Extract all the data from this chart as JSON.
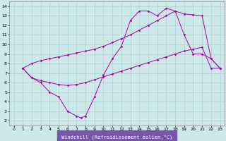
{
  "bg_color": "#cce8e8",
  "grid_color": "#b0d0d0",
  "line_color": "#aa00aa",
  "xlim": [
    -0.5,
    23.5
  ],
  "ylim": [
    1.5,
    14.5
  ],
  "xticks": [
    0,
    1,
    2,
    3,
    4,
    5,
    6,
    7,
    8,
    9,
    10,
    11,
    12,
    13,
    14,
    15,
    16,
    17,
    18,
    19,
    20,
    21,
    22,
    23
  ],
  "yticks": [
    2,
    3,
    4,
    5,
    6,
    7,
    8,
    9,
    10,
    11,
    12,
    13,
    14
  ],
  "xlabel": "Windchill (Refroidissement éolien,°C)",
  "xlabel_bg": "#7755aa",
  "line1_x": [
    1,
    2,
    3,
    4,
    5,
    6,
    7,
    7.5,
    8,
    9,
    10,
    11,
    12,
    13,
    14,
    15,
    16,
    17,
    18,
    19,
    20,
    21,
    22,
    23
  ],
  "line1_y": [
    7.5,
    6.5,
    6.0,
    5.0,
    4.5,
    3.0,
    2.5,
    2.3,
    2.5,
    4.5,
    6.8,
    8.5,
    9.8,
    12.5,
    13.5,
    13.5,
    13.0,
    13.8,
    13.5,
    11.0,
    9.0,
    9.0,
    8.5,
    7.5
  ],
  "line2_x": [
    1,
    2,
    3,
    4,
    5,
    6,
    7,
    8,
    9,
    10,
    11,
    12,
    13,
    14,
    15,
    16,
    17,
    18,
    19,
    20,
    21,
    22,
    23
  ],
  "line2_y": [
    7.5,
    8.0,
    8.3,
    8.5,
    8.7,
    8.9,
    9.1,
    9.3,
    9.5,
    9.8,
    10.2,
    10.6,
    11.0,
    11.5,
    12.0,
    12.5,
    13.0,
    13.5,
    13.2,
    13.1,
    13.0,
    8.5,
    7.5
  ],
  "line3_x": [
    1,
    2,
    3,
    4,
    5,
    6,
    7,
    8,
    9,
    10,
    11,
    12,
    13,
    14,
    15,
    16,
    17,
    18,
    19,
    20,
    21,
    22,
    23
  ],
  "line3_y": [
    7.5,
    6.5,
    6.2,
    6.0,
    5.8,
    5.7,
    5.8,
    6.0,
    6.3,
    6.6,
    6.9,
    7.2,
    7.5,
    7.8,
    8.1,
    8.4,
    8.7,
    9.0,
    9.3,
    9.5,
    9.7,
    7.5,
    7.5
  ]
}
